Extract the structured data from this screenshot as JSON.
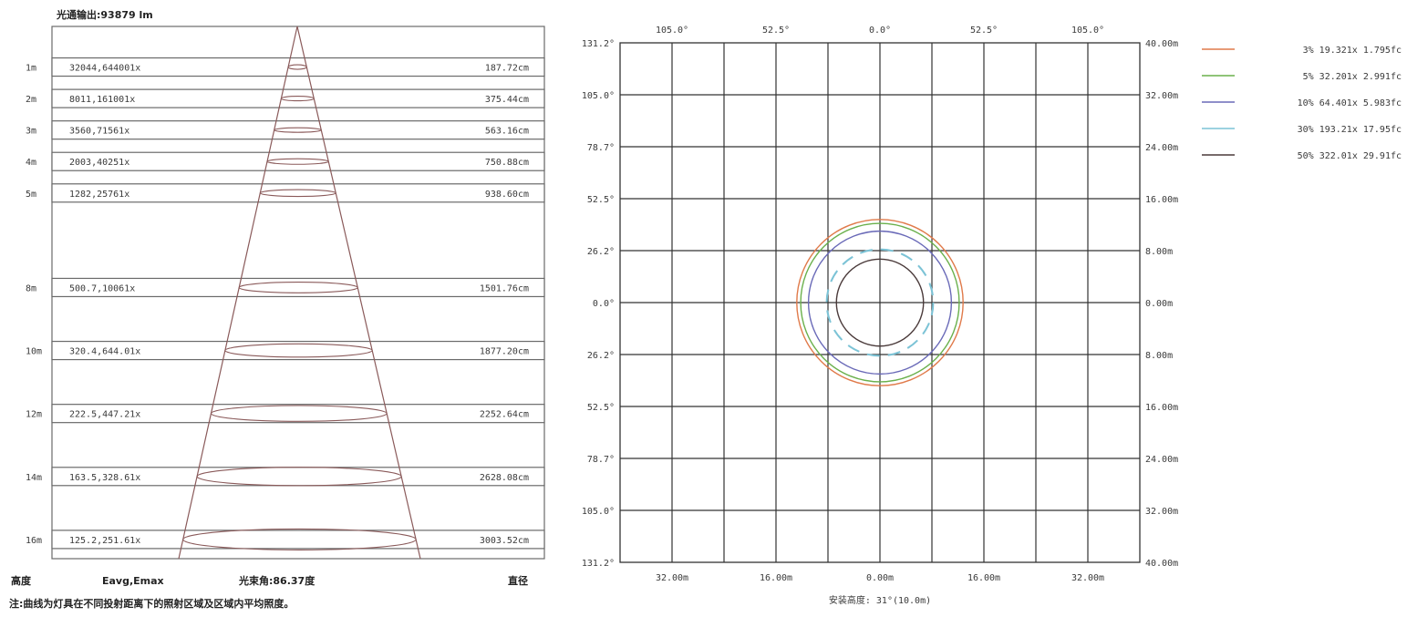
{
  "left_chart": {
    "output_label": "光通输出:93879 lm",
    "rows": [
      {
        "height": "1m",
        "lux": "32044,644001x",
        "diameter": "187.72cm"
      },
      {
        "height": "2m",
        "lux": "8011,161001x",
        "diameter": "375.44cm"
      },
      {
        "height": "3m",
        "lux": "3560,71561x",
        "diameter": "563.16cm"
      },
      {
        "height": "4m",
        "lux": "2003,40251x",
        "diameter": "750.88cm"
      },
      {
        "height": "5m",
        "lux": "1282,25761x",
        "diameter": "938.60cm"
      },
      {
        "height": "8m",
        "lux": "500.7,10061x",
        "diameter": "1501.76cm"
      },
      {
        "height": "10m",
        "lux": "320.4,644.01x",
        "diameter": "1877.20cm"
      },
      {
        "height": "12m",
        "lux": "222.5,447.21x",
        "diameter": "2252.64cm"
      },
      {
        "height": "14m",
        "lux": "163.5,328.61x",
        "diameter": "2628.08cm"
      },
      {
        "height": "16m",
        "lux": "125.2,251.61x",
        "diameter": "3003.52cm"
      }
    ],
    "footer": {
      "height_label": "高度",
      "eavg_label": "Eavg,Emax",
      "beam_angle": "光束角:86.37度",
      "diameter_label": "直径"
    },
    "note": "注:曲线为灯具在不同投射距离下的照射区域及区域内平均照度。"
  },
  "chart_data": {
    "type": "contour",
    "top_ticks": [
      "105.0°",
      "52.5°",
      "0.0°",
      "52.5°",
      "105.0°"
    ],
    "left_ticks": [
      "131.2°",
      "105.0°",
      "78.7°",
      "52.5°",
      "26.2°",
      "0.0°",
      "26.2°",
      "52.5°",
      "78.7°",
      "105.0°",
      "131.2°"
    ],
    "right_ticks": [
      "40.00m",
      "32.00m",
      "24.00m",
      "16.00m",
      "8.00m",
      "0.00m",
      "8.00m",
      "16.00m",
      "24.00m",
      "32.00m",
      "40.00m"
    ],
    "bottom_ticks": [
      "32.00m",
      "16.00m",
      "0.00m",
      "16.00m",
      "32.00m"
    ],
    "bottom_label": "安装高度: 31°(10.0m)",
    "range_m": [
      -40,
      40
    ],
    "series": [
      {
        "name": "3% 19.321x 1.795fc",
        "color": "#e07a4a",
        "radius_m": 12.8,
        "dashed": false
      },
      {
        "name": "5% 32.201x 2.991fc",
        "color": "#6ab04c",
        "radius_m": 12.2,
        "dashed": false
      },
      {
        "name": "10% 64.401x 5.983fc",
        "color": "#6a6ab8",
        "radius_m": 11.0,
        "dashed": false
      },
      {
        "name": "30% 193.21x 17.95fc",
        "color": "#7cc3d6",
        "radius_m": 8.2,
        "dashed": true
      },
      {
        "name": "50% 322.01x 29.91fc",
        "color": "#4a3a3a",
        "radius_m": 6.7,
        "dashed": false
      }
    ]
  }
}
